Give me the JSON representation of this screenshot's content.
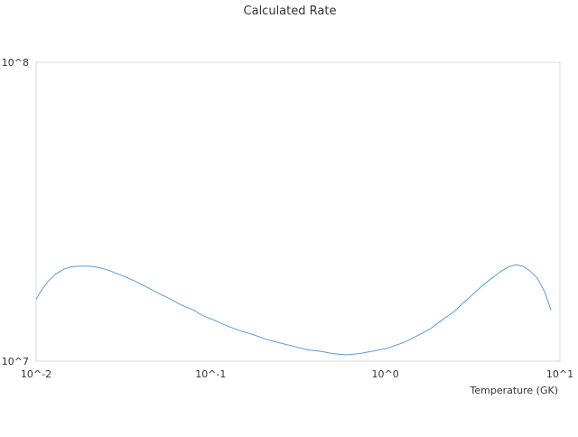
{
  "chart_data": {
    "type": "line",
    "title": "Calculated Rate",
    "xlabel": "Temperature (GK)",
    "ylabel": "",
    "x_scale": "log",
    "y_scale": "log",
    "xlim": [
      0.01,
      10
    ],
    "ylim": [
      10000000,
      100000000
    ],
    "x_ticks": [
      "10^-2",
      "10^-1",
      "10^0",
      "10^1"
    ],
    "y_ticks": [
      "10^7",
      "10^8"
    ],
    "grid": false,
    "legend": "none",
    "series": [
      {
        "color": "#5b9bd5",
        "points": [
          [
            0.01,
            16100000
          ],
          [
            0.0109,
            17500000
          ],
          [
            0.0118,
            18600000
          ],
          [
            0.013,
            19600000
          ],
          [
            0.0144,
            20300000
          ],
          [
            0.016,
            20700000
          ],
          [
            0.0178,
            20800000
          ],
          [
            0.02,
            20800000
          ],
          [
            0.0225,
            20600000
          ],
          [
            0.025,
            20300000
          ],
          [
            0.028,
            19800000
          ],
          [
            0.032,
            19200000
          ],
          [
            0.037,
            18500000
          ],
          [
            0.043,
            17700000
          ],
          [
            0.05,
            16900000
          ],
          [
            0.058,
            16200000
          ],
          [
            0.068,
            15400000
          ],
          [
            0.08,
            14800000
          ],
          [
            0.09,
            14200000
          ],
          [
            0.105,
            13700000
          ],
          [
            0.125,
            13100000
          ],
          [
            0.15,
            12600000
          ],
          [
            0.18,
            12200000
          ],
          [
            0.21,
            11800000
          ],
          [
            0.25,
            11500000
          ],
          [
            0.3,
            11200000
          ],
          [
            0.36,
            10900000
          ],
          [
            0.42,
            10800000
          ],
          [
            0.5,
            10600000
          ],
          [
            0.6,
            10500000
          ],
          [
            0.71,
            10600000
          ],
          [
            0.85,
            10800000
          ],
          [
            1.0,
            11000000
          ],
          [
            1.15,
            11300000
          ],
          [
            1.3,
            11600000
          ],
          [
            1.5,
            12100000
          ],
          [
            1.8,
            12800000
          ],
          [
            2.1,
            13700000
          ],
          [
            2.5,
            14700000
          ],
          [
            2.8,
            15700000
          ],
          [
            3.2,
            16800000
          ],
          [
            3.6,
            17900000
          ],
          [
            4.1,
            19000000
          ],
          [
            4.6,
            20000000
          ],
          [
            5.1,
            20700000
          ],
          [
            5.6,
            21000000
          ],
          [
            6.1,
            20800000
          ],
          [
            6.7,
            20100000
          ],
          [
            7.4,
            19000000
          ],
          [
            8.2,
            17000000
          ],
          [
            8.9,
            14800000
          ]
        ]
      }
    ]
  }
}
